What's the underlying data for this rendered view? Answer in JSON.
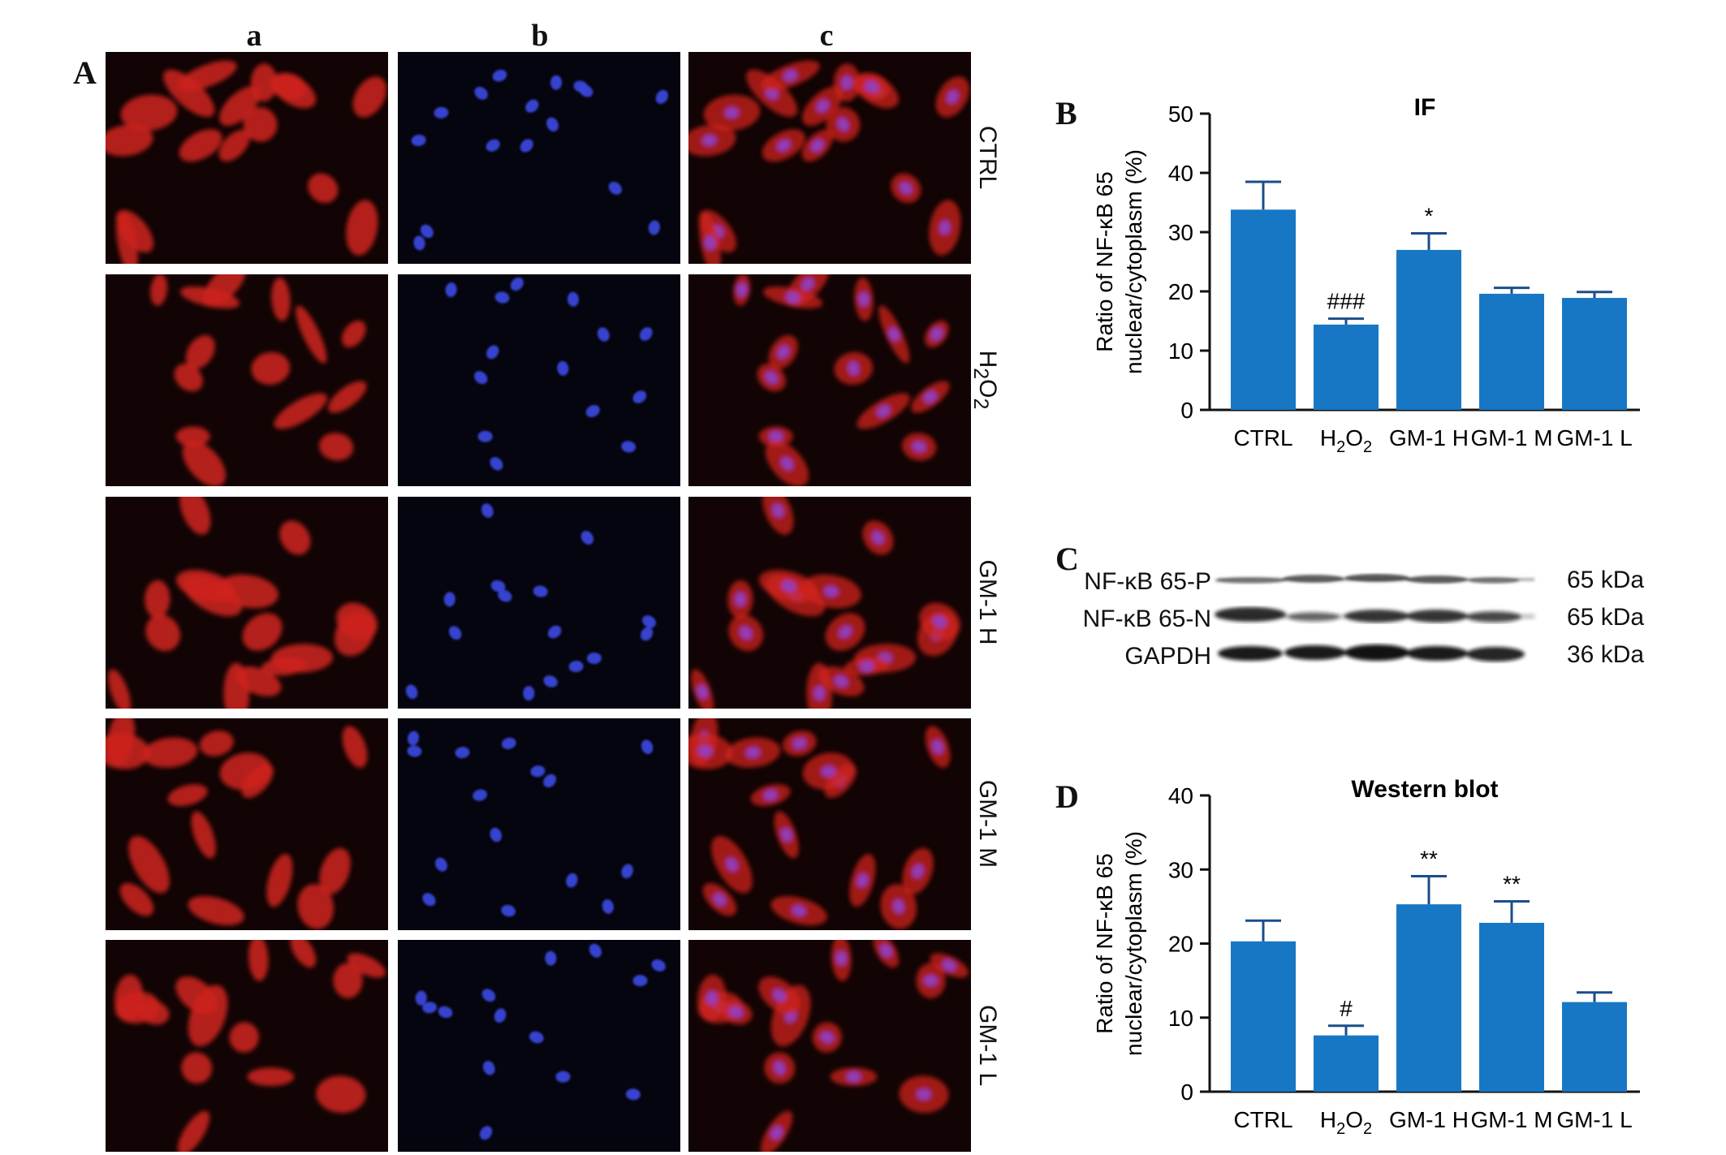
{
  "panel_A": {
    "letter": "A",
    "columns": [
      "a",
      "b",
      "c"
    ],
    "rows": [
      {
        "label_html": "CTRL"
      },
      {
        "label_html": "H<sub>2</sub>O<sub>2</sub>"
      },
      {
        "label_html": "GM-1 H"
      },
      {
        "label_html": "GM-1 M"
      },
      {
        "label_html": "GM-1 L"
      }
    ],
    "colors": {
      "red": "#d0241c",
      "blue": "#3a46d8",
      "merge": "#9040c0"
    }
  },
  "panel_B": {
    "letter": "B",
    "chart_data": {
      "type": "bar",
      "title": "IF",
      "ylabel_lines": [
        "Ratio of NF-κB 65",
        "nuclear/cytoplasm (%)"
      ],
      "categories": [
        "CTRL",
        "H2O2",
        "GM-1 H",
        "GM-1 M",
        "GM-1 L"
      ],
      "values": [
        33.8,
        14.4,
        27.0,
        19.6,
        18.9
      ],
      "errors": [
        4.7,
        1.0,
        2.8,
        1.0,
        1.0
      ],
      "annotations": [
        "",
        "###",
        "*",
        "",
        ""
      ],
      "ylim": [
        0,
        50
      ],
      "yticks": [
        0,
        10,
        20,
        30,
        40,
        50
      ],
      "bar_color": "#1777c4"
    }
  },
  "panel_C": {
    "letter": "C",
    "bands": [
      {
        "label": "NF-κB 65-P",
        "kda": "65 kDa"
      },
      {
        "label": "NF-κB 65-N",
        "kda": "65 kDa"
      },
      {
        "label": "GAPDH",
        "kda": "36 kDa"
      }
    ]
  },
  "panel_D": {
    "letter": "D",
    "chart_data": {
      "type": "bar",
      "title": "Western blot",
      "ylabel_lines": [
        "Ratio of NF-κB 65",
        "nuclear/cytoplasm (%)"
      ],
      "categories": [
        "CTRL",
        "H2O2",
        "GM-1 H",
        "GM-1 M",
        "GM-1 L"
      ],
      "values": [
        20.3,
        7.6,
        25.3,
        22.8,
        12.1
      ],
      "errors": [
        2.8,
        1.3,
        3.8,
        2.9,
        1.3
      ],
      "annotations": [
        "",
        "#",
        "**",
        "**",
        ""
      ],
      "ylim": [
        0,
        40
      ],
      "yticks": [
        0,
        10,
        20,
        30,
        40
      ],
      "bar_color": "#1777c4"
    }
  }
}
